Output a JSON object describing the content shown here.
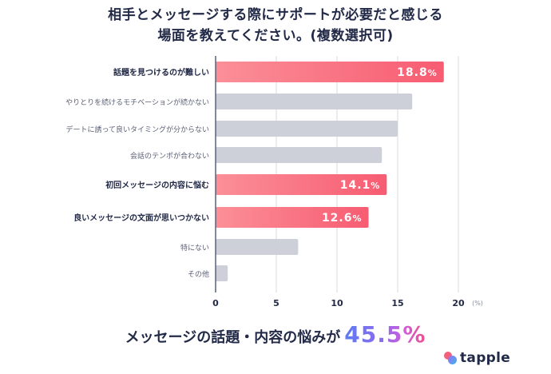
{
  "title": {
    "line1": "相手とメッセージする際にサポートが必要だと感じる",
    "line2": "場面を教えてください。(複数選択可)"
  },
  "chart_data": {
    "type": "bar",
    "orientation": "horizontal",
    "title": "相手とメッセージする際にサポートが必要だと感じる場面を教えてください。(複数選択可)",
    "xlabel": "",
    "ylabel": "",
    "unit_label": "(%)",
    "xlim": [
      0,
      20
    ],
    "xticks": [
      "0",
      "5",
      "10",
      "15",
      "20"
    ],
    "grid": true,
    "categories": [
      "話題を見つけるのが難しい",
      "やりとりを続けるモチベーションが続かない",
      "デートに誘って良いタイミングが分からない",
      "会話のテンポが合わない",
      "初回メッセージの内容に悩む",
      "良いメッセージの文面が思いつかない",
      "特にない",
      "その他"
    ],
    "values": [
      18.8,
      16.2,
      15.0,
      13.7,
      14.1,
      12.6,
      6.8,
      1.0
    ],
    "highlighted": [
      true,
      false,
      false,
      false,
      true,
      true,
      false,
      false
    ],
    "data_labels": [
      "18.8%",
      "",
      "",
      "",
      "14.1%",
      "12.6%",
      "",
      ""
    ],
    "colors": {
      "highlight_start": "#fb8f98",
      "highlight_end": "#f75c72",
      "normal": "#cdd0d9",
      "grid": "#d6d8de",
      "axis": "#5a6078"
    }
  },
  "summary": {
    "text": "メッセージの話題・内容の悩みが",
    "value": "45.5%"
  },
  "logo": {
    "name": "tapple"
  }
}
